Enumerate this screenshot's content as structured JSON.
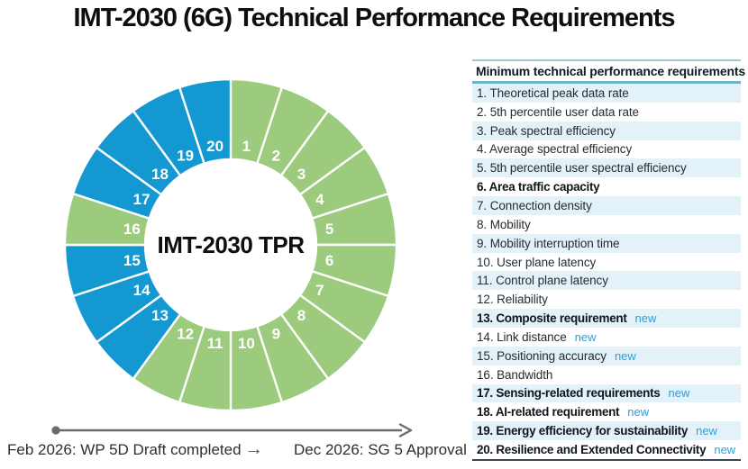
{
  "title": "IMT-2030 (6G) Technical Performance Requirements",
  "colors": {
    "green": "#9ccb7d",
    "blue": "#1398d2",
    "segment_divider": "#ffffff",
    "row_highlight": "#e3f1f9",
    "new_label": "#2d9fd6",
    "header_rule_top": "#9cc9d4",
    "header_rule_bottom": "#6fb2c4",
    "bottom_rule": "#3c434e",
    "timeline_gray": "#6b6b6b"
  },
  "chart_data": {
    "type": "pie",
    "subtype": "donut",
    "title": "IMT-2030 TPR",
    "center_label": "IMT-2030 TPR",
    "segment_angle_deg": 18,
    "categories": [
      "1",
      "2",
      "3",
      "4",
      "5",
      "6",
      "7",
      "8",
      "9",
      "10",
      "11",
      "12",
      "13",
      "14",
      "15",
      "16",
      "17",
      "18",
      "19",
      "20"
    ],
    "values": [
      1,
      1,
      1,
      1,
      1,
      1,
      1,
      1,
      1,
      1,
      1,
      1,
      1,
      1,
      1,
      1,
      1,
      1,
      1,
      1
    ],
    "segments": [
      {
        "label": "1",
        "group": "existing"
      },
      {
        "label": "2",
        "group": "existing"
      },
      {
        "label": "3",
        "group": "existing"
      },
      {
        "label": "4",
        "group": "existing"
      },
      {
        "label": "5",
        "group": "existing"
      },
      {
        "label": "6",
        "group": "existing"
      },
      {
        "label": "7",
        "group": "existing"
      },
      {
        "label": "8",
        "group": "existing"
      },
      {
        "label": "9",
        "group": "existing"
      },
      {
        "label": "10",
        "group": "existing"
      },
      {
        "label": "11",
        "group": "existing"
      },
      {
        "label": "12",
        "group": "existing"
      },
      {
        "label": "13",
        "group": "new"
      },
      {
        "label": "14",
        "group": "new"
      },
      {
        "label": "15",
        "group": "new"
      },
      {
        "label": "16",
        "group": "existing"
      },
      {
        "label": "17",
        "group": "new"
      },
      {
        "label": "18",
        "group": "new"
      },
      {
        "label": "19",
        "group": "new"
      },
      {
        "label": "20",
        "group": "new"
      }
    ],
    "group_colors": {
      "existing": "green",
      "new": "blue"
    },
    "legend_position": "none"
  },
  "table": {
    "header": "Minimum technical performance requirements",
    "new_badge": "new",
    "rows": [
      {
        "text": "1. Theoretical peak data rate",
        "bold": false,
        "new": false
      },
      {
        "text": "2. 5th percentile user data rate",
        "bold": false,
        "new": false
      },
      {
        "text": "3. Peak spectral efficiency",
        "bold": false,
        "new": false
      },
      {
        "text": "4. Average spectral efficiency",
        "bold": false,
        "new": false
      },
      {
        "text": "5. 5th percentile user spectral efficiency",
        "bold": false,
        "new": false
      },
      {
        "text": "6. Area traffic capacity",
        "bold": true,
        "new": false
      },
      {
        "text": "7. Connection density",
        "bold": false,
        "new": false
      },
      {
        "text": "8. Mobility",
        "bold": false,
        "new": false
      },
      {
        "text": "9. Mobility interruption time",
        "bold": false,
        "new": false
      },
      {
        "text": "10. User plane latency",
        "bold": false,
        "new": false
      },
      {
        "text": "11. Control plane latency",
        "bold": false,
        "new": false
      },
      {
        "text": "12. Reliability",
        "bold": false,
        "new": false
      },
      {
        "text": "13. Composite requirement",
        "bold": true,
        "new": true
      },
      {
        "text": "14. Link distance",
        "bold": false,
        "new": true
      },
      {
        "text": "15. Positioning accuracy",
        "bold": false,
        "new": true
      },
      {
        "text": "16. Bandwidth",
        "bold": false,
        "new": false
      },
      {
        "text": "17. Sensing-related requirements",
        "bold": true,
        "new": true
      },
      {
        "text": "18. AI-related requirement",
        "bold": true,
        "new": true
      },
      {
        "text": "19. Energy efficiency for sustainability",
        "bold": true,
        "new": true
      },
      {
        "text": "20. Resilience and Extended Connectivity",
        "bold": true,
        "new": true
      }
    ]
  },
  "timeline": {
    "left_label": "Feb 2026: WP 5D Draft completed",
    "arrow_glyph": "→",
    "right_label": "Dec 2026: SG 5 Approval"
  }
}
